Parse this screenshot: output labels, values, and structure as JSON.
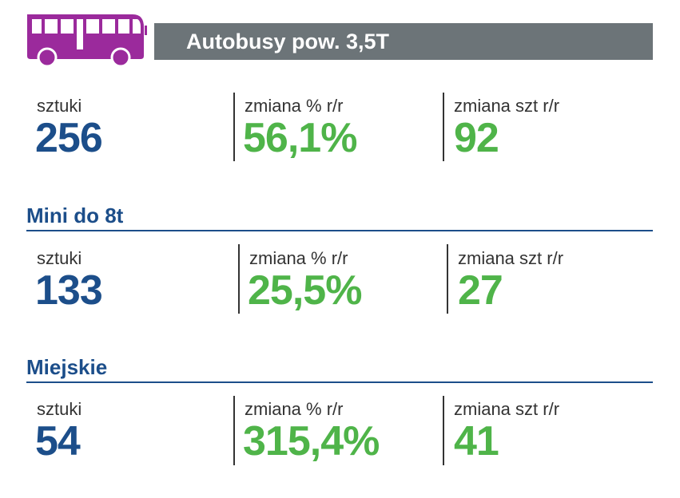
{
  "colors": {
    "accent_blue": "#1c4e8a",
    "accent_green": "#4fb449",
    "bus_purple": "#9b2a9c",
    "header_gray": "#6c7478"
  },
  "icon": "bus-icon",
  "header": {
    "title": "Autobusy pow. 3,5T"
  },
  "sections": [
    {
      "title": "",
      "stats": [
        {
          "label": "sztuki",
          "value": "256"
        },
        {
          "label": "zmiana % r/r",
          "value": "56,1%"
        },
        {
          "label": "zmiana szt r/r",
          "value": "92"
        }
      ]
    },
    {
      "title": "Mini do 8t",
      "stats": [
        {
          "label": "sztuki",
          "value": "133"
        },
        {
          "label": "zmiana % r/r",
          "value": "25,5%"
        },
        {
          "label": "zmiana szt r/r",
          "value": "27"
        }
      ]
    },
    {
      "title": "Miejskie",
      "stats": [
        {
          "label": "sztuki",
          "value": "54"
        },
        {
          "label": "zmiana % r/r",
          "value": "315,4%"
        },
        {
          "label": "zmiana szt r/r",
          "value": "41"
        }
      ]
    }
  ]
}
